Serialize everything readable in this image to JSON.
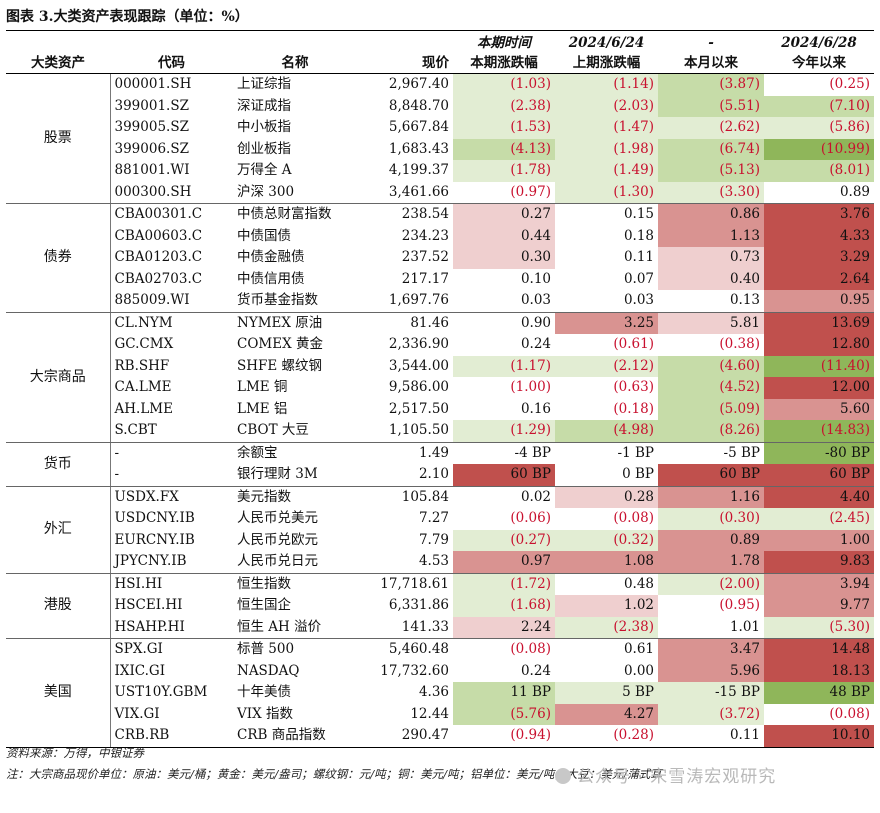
{
  "title": "图表 3.大类资产表现跟踪（单位：%）",
  "headers_top": [
    "",
    "",
    "",
    "",
    "本期时间",
    "2024/6/24",
    "-",
    "2024/6/28"
  ],
  "headers": [
    "大类资产",
    "代码",
    "名称",
    "现价",
    "本期涨跌幅",
    "上期涨跌幅",
    "本月以来",
    "今年以来"
  ],
  "colors": {
    "red_dark": "#c0504d",
    "red_mid": "#d99391",
    "red_light": "#efcfcf",
    "green_dark": "#8fb65a",
    "green_mid": "#c6dca8",
    "green_light": "#e2edd3"
  },
  "groups": [
    {
      "category": "股票",
      "rows": [
        {
          "code": "000001.SH",
          "name": "上证综指",
          "price": "2,967.40",
          "cells": [
            {
              "v": "(1.03)",
              "c": "green_light"
            },
            {
              "v": "(1.14)",
              "c": "green_light"
            },
            {
              "v": "(3.87)",
              "c": "green_mid"
            },
            {
              "v": "(0.25)",
              "c": ""
            }
          ]
        },
        {
          "code": "399001.SZ",
          "name": "深证成指",
          "price": "8,848.70",
          "cells": [
            {
              "v": "(2.38)",
              "c": "green_light"
            },
            {
              "v": "(2.03)",
              "c": "green_light"
            },
            {
              "v": "(5.51)",
              "c": "green_mid"
            },
            {
              "v": "(7.10)",
              "c": "green_mid"
            }
          ]
        },
        {
          "code": "399005.SZ",
          "name": "中小板指",
          "price": "5,667.84",
          "cells": [
            {
              "v": "(1.53)",
              "c": "green_light"
            },
            {
              "v": "(1.47)",
              "c": "green_light"
            },
            {
              "v": "(2.62)",
              "c": "green_light"
            },
            {
              "v": "(5.86)",
              "c": "green_light"
            }
          ]
        },
        {
          "code": "399006.SZ",
          "name": "创业板指",
          "price": "1,683.43",
          "cells": [
            {
              "v": "(4.13)",
              "c": "green_mid"
            },
            {
              "v": "(1.98)",
              "c": "green_light"
            },
            {
              "v": "(6.74)",
              "c": "green_mid"
            },
            {
              "v": "(10.99)",
              "c": "green_dark"
            }
          ]
        },
        {
          "code": "881001.WI",
          "name": "万得全 A",
          "price": "4,199.37",
          "cells": [
            {
              "v": "(1.78)",
              "c": "green_light"
            },
            {
              "v": "(1.49)",
              "c": "green_light"
            },
            {
              "v": "(5.13)",
              "c": "green_mid"
            },
            {
              "v": "(8.01)",
              "c": "green_mid"
            }
          ]
        },
        {
          "code": "000300.SH",
          "name": "沪深 300",
          "price": "3,461.66",
          "cells": [
            {
              "v": "(0.97)",
              "c": ""
            },
            {
              "v": "(1.30)",
              "c": "green_light"
            },
            {
              "v": "(3.30)",
              "c": "green_light"
            },
            {
              "v": "0.89",
              "c": ""
            }
          ]
        }
      ]
    },
    {
      "category": "债券",
      "rows": [
        {
          "code": "CBA00301.C",
          "name": "中债总财富指数",
          "price": "238.54",
          "cells": [
            {
              "v": "0.27",
              "c": "red_light"
            },
            {
              "v": "0.15",
              "c": ""
            },
            {
              "v": "0.86",
              "c": "red_mid"
            },
            {
              "v": "3.76",
              "c": "red_dark"
            }
          ]
        },
        {
          "code": "CBA00603.C",
          "name": "中债国债",
          "price": "234.23",
          "cells": [
            {
              "v": "0.44",
              "c": "red_light"
            },
            {
              "v": "0.18",
              "c": ""
            },
            {
              "v": "1.13",
              "c": "red_mid"
            },
            {
              "v": "4.33",
              "c": "red_dark"
            }
          ]
        },
        {
          "code": "CBA01203.C",
          "name": "中债金融债",
          "price": "237.52",
          "cells": [
            {
              "v": "0.30",
              "c": "red_light"
            },
            {
              "v": "0.11",
              "c": ""
            },
            {
              "v": "0.73",
              "c": "red_light"
            },
            {
              "v": "3.29",
              "c": "red_dark"
            }
          ]
        },
        {
          "code": "CBA02703.C",
          "name": "中债信用债",
          "price": "217.17",
          "cells": [
            {
              "v": "0.10",
              "c": ""
            },
            {
              "v": "0.07",
              "c": ""
            },
            {
              "v": "0.40",
              "c": "red_light"
            },
            {
              "v": "2.64",
              "c": "red_dark"
            }
          ]
        },
        {
          "code": "885009.WI",
          "name": "货币基金指数",
          "price": "1,697.76",
          "cells": [
            {
              "v": "0.03",
              "c": ""
            },
            {
              "v": "0.03",
              "c": ""
            },
            {
              "v": "0.13",
              "c": ""
            },
            {
              "v": "0.95",
              "c": "red_mid"
            }
          ]
        }
      ]
    },
    {
      "category": "大宗商品",
      "rows": [
        {
          "code": "CL.NYM",
          "name": "NYMEX 原油",
          "price": "81.46",
          "cells": [
            {
              "v": "0.90",
              "c": ""
            },
            {
              "v": "3.25",
              "c": "red_mid"
            },
            {
              "v": "5.81",
              "c": "red_light"
            },
            {
              "v": "13.69",
              "c": "red_dark"
            }
          ]
        },
        {
          "code": "GC.CMX",
          "name": "COMEX 黄金",
          "price": "2,336.90",
          "cells": [
            {
              "v": "0.24",
              "c": ""
            },
            {
              "v": "(0.61)",
              "c": ""
            },
            {
              "v": "(0.38)",
              "c": ""
            },
            {
              "v": "12.80",
              "c": "red_dark"
            }
          ]
        },
        {
          "code": "RB.SHF",
          "name": "SHFE 螺纹钢",
          "price": "3,544.00",
          "cells": [
            {
              "v": "(1.17)",
              "c": "green_light"
            },
            {
              "v": "(2.12)",
              "c": "green_light"
            },
            {
              "v": "(4.60)",
              "c": "green_mid"
            },
            {
              "v": "(11.40)",
              "c": "green_dark"
            }
          ]
        },
        {
          "code": "CA.LME",
          "name": "LME 铜",
          "price": "9,586.00",
          "cells": [
            {
              "v": "(1.00)",
              "c": ""
            },
            {
              "v": "(0.63)",
              "c": ""
            },
            {
              "v": "(4.52)",
              "c": "green_mid"
            },
            {
              "v": "12.00",
              "c": "red_dark"
            }
          ]
        },
        {
          "code": "AH.LME",
          "name": "LME 铝",
          "price": "2,517.50",
          "cells": [
            {
              "v": "0.16",
              "c": ""
            },
            {
              "v": "(0.18)",
              "c": ""
            },
            {
              "v": "(5.09)",
              "c": "green_mid"
            },
            {
              "v": "5.60",
              "c": "red_mid"
            }
          ]
        },
        {
          "code": "S.CBT",
          "name": "CBOT 大豆",
          "price": "1,105.50",
          "cells": [
            {
              "v": "(1.29)",
              "c": "green_light"
            },
            {
              "v": "(4.98)",
              "c": "green_mid"
            },
            {
              "v": "(8.26)",
              "c": "green_mid"
            },
            {
              "v": "(14.83)",
              "c": "green_dark"
            }
          ]
        }
      ]
    },
    {
      "category": "货币",
      "rows": [
        {
          "code": "-",
          "name": "余额宝",
          "price": "1.49",
          "cells": [
            {
              "v": "-4 BP",
              "c": ""
            },
            {
              "v": "-1 BP",
              "c": ""
            },
            {
              "v": "-5 BP",
              "c": ""
            },
            {
              "v": "-80 BP",
              "c": "green_dark"
            }
          ]
        },
        {
          "code": "-",
          "name": "银行理财 3M",
          "price": "2.10",
          "cells": [
            {
              "v": "60 BP",
              "c": "red_dark"
            },
            {
              "v": "0 BP",
              "c": ""
            },
            {
              "v": "60 BP",
              "c": "red_dark"
            },
            {
              "v": "60 BP",
              "c": "red_dark"
            }
          ]
        }
      ]
    },
    {
      "category": "外汇",
      "rows": [
        {
          "code": "USDX.FX",
          "name": "美元指数",
          "price": "105.84",
          "cells": [
            {
              "v": "0.02",
              "c": ""
            },
            {
              "v": "0.28",
              "c": "red_light"
            },
            {
              "v": "1.16",
              "c": "red_mid"
            },
            {
              "v": "4.40",
              "c": "red_dark"
            }
          ]
        },
        {
          "code": "USDCNY.IB",
          "name": "人民币兑美元",
          "price": "7.27",
          "cells": [
            {
              "v": "(0.06)",
              "c": ""
            },
            {
              "v": "(0.08)",
              "c": ""
            },
            {
              "v": "(0.30)",
              "c": "green_light"
            },
            {
              "v": "(2.45)",
              "c": "green_light"
            }
          ]
        },
        {
          "code": "EURCNY.IB",
          "name": "人民币兑欧元",
          "price": "7.79",
          "cells": [
            {
              "v": "(0.27)",
              "c": "green_light"
            },
            {
              "v": "(0.32)",
              "c": "green_light"
            },
            {
              "v": "0.89",
              "c": "red_mid"
            },
            {
              "v": "1.00",
              "c": "red_mid"
            }
          ]
        },
        {
          "code": "JPYCNY.IB",
          "name": "人民币兑日元",
          "price": "4.53",
          "cells": [
            {
              "v": "0.97",
              "c": "red_mid"
            },
            {
              "v": "1.08",
              "c": "red_mid"
            },
            {
              "v": "1.78",
              "c": "red_mid"
            },
            {
              "v": "9.83",
              "c": "red_dark"
            }
          ]
        }
      ]
    },
    {
      "category": "港股",
      "rows": [
        {
          "code": "HSI.HI",
          "name": "恒生指数",
          "price": "17,718.61",
          "cells": [
            {
              "v": "(1.72)",
              "c": "green_light"
            },
            {
              "v": "0.48",
              "c": ""
            },
            {
              "v": "(2.00)",
              "c": "green_light"
            },
            {
              "v": "3.94",
              "c": "red_mid"
            }
          ]
        },
        {
          "code": "HSCEI.HI",
          "name": "恒生国企",
          "price": "6,331.86",
          "cells": [
            {
              "v": "(1.68)",
              "c": "green_light"
            },
            {
              "v": "1.02",
              "c": "red_light"
            },
            {
              "v": "(0.95)",
              "c": ""
            },
            {
              "v": "9.77",
              "c": "red_mid"
            }
          ]
        },
        {
          "code": "HSAHP.HI",
          "name": "恒生 AH 溢价",
          "price": "141.33",
          "cells": [
            {
              "v": "2.24",
              "c": "red_light"
            },
            {
              "v": "(2.38)",
              "c": "green_light"
            },
            {
              "v": "1.01",
              "c": ""
            },
            {
              "v": "(5.30)",
              "c": "green_light"
            }
          ]
        }
      ]
    },
    {
      "category": "美国",
      "rows": [
        {
          "code": "SPX.GI",
          "name": "标普 500",
          "price": "5,460.48",
          "cells": [
            {
              "v": "(0.08)",
              "c": ""
            },
            {
              "v": "0.61",
              "c": ""
            },
            {
              "v": "3.47",
              "c": "red_mid"
            },
            {
              "v": "14.48",
              "c": "red_dark"
            }
          ]
        },
        {
          "code": "IXIC.GI",
          "name": "NASDAQ",
          "price": "17,732.60",
          "cells": [
            {
              "v": "0.24",
              "c": ""
            },
            {
              "v": "0.00",
              "c": ""
            },
            {
              "v": "5.96",
              "c": "red_mid"
            },
            {
              "v": "18.13",
              "c": "red_dark"
            }
          ]
        },
        {
          "code": "UST10Y.GBM",
          "name": "十年美债",
          "price": "4.36",
          "cells": [
            {
              "v": "11 BP",
              "c": "green_mid"
            },
            {
              "v": "5 BP",
              "c": "green_light"
            },
            {
              "v": "-15 BP",
              "c": "green_light"
            },
            {
              "v": "48 BP",
              "c": "green_dark"
            }
          ]
        },
        {
          "code": "VIX.GI",
          "name": "VIX 指数",
          "price": "12.44",
          "cells": [
            {
              "v": "(5.76)",
              "c": "green_mid"
            },
            {
              "v": "4.27",
              "c": "red_mid"
            },
            {
              "v": "(3.72)",
              "c": "green_light"
            },
            {
              "v": "(0.08)",
              "c": ""
            }
          ]
        },
        {
          "code": "CRB.RB",
          "name": "CRB 商品指数",
          "price": "290.47",
          "cells": [
            {
              "v": "(0.94)",
              "c": ""
            },
            {
              "v": "(0.28)",
              "c": ""
            },
            {
              "v": "0.11",
              "c": ""
            },
            {
              "v": "10.10",
              "c": "red_dark"
            }
          ]
        }
      ]
    }
  ],
  "source": "资料来源：万得，中银证券",
  "note": "注：大宗商品现价单位：原油：美元/桶；黄金：美元/盎司；螺纹钢：元/吨；铜：美元/吨；铝单位：美元/吨；大豆：美元/蒲式耳",
  "watermark_icon": "wechat-icon",
  "watermark": "公众号 · 宋雪涛宏观研究"
}
